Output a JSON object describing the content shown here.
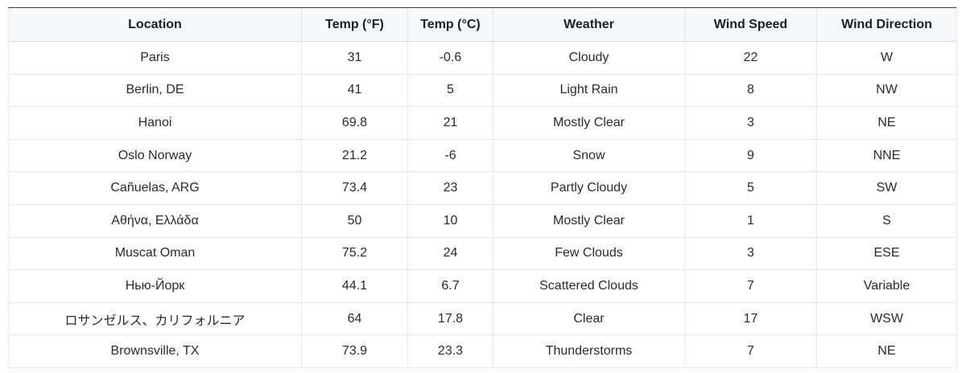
{
  "table": {
    "headers": [
      "Location",
      "Temp (°F)",
      "Temp (°C)",
      "Weather",
      "Wind Speed",
      "Wind Direction"
    ],
    "rows": [
      [
        "Paris",
        "31",
        "-0.6",
        "Cloudy",
        "22",
        "W"
      ],
      [
        "Berlin, DE",
        "41",
        "5",
        "Light Rain",
        "8",
        "NW"
      ],
      [
        "Hanoi",
        "69.8",
        "21",
        "Mostly Clear",
        "3",
        "NE"
      ],
      [
        "Oslo Norway",
        "21.2",
        "-6",
        "Snow",
        "9",
        "NNE"
      ],
      [
        "Cañuelas, ARG",
        "73.4",
        "23",
        "Partly Cloudy",
        "5",
        "SW"
      ],
      [
        "Αθήνα, Ελλάδα",
        "50",
        "10",
        "Mostly Clear",
        "1",
        "S"
      ],
      [
        "Muscat Oman",
        "75.2",
        "24",
        "Few Clouds",
        "3",
        "ESE"
      ],
      [
        "Нью-Йорк",
        "44.1",
        "6.7",
        "Scattered Clouds",
        "7",
        "Variable"
      ],
      [
        "ロサンゼルス、カリフォルニア",
        "64",
        "17.8",
        "Clear",
        "17",
        "WSW"
      ],
      [
        "Brownsville, TX",
        "73.9",
        "23.3",
        "Thunderstorms",
        "7",
        "NE"
      ]
    ]
  }
}
